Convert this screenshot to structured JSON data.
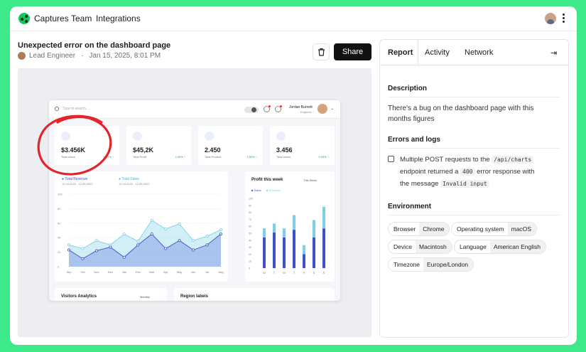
{
  "header": {
    "nav": [
      "Captures",
      "Team",
      "Integrations"
    ]
  },
  "capture": {
    "title": "Unexpected error on the dashboard page",
    "author": "Lead Engineer",
    "date": "Jan 15, 2025, 8:01 PM",
    "share_label": "Share"
  },
  "preview": {
    "search_placeholder": "Type to search...",
    "user_name": "Jordan Burnett",
    "user_role": "Engineer",
    "cards": [
      {
        "value": "$3.456K",
        "label": "Total views",
        "change": "0.43% ↑"
      },
      {
        "value": "$45,2K",
        "label": "Total Profit",
        "change": "4.35% ↑"
      },
      {
        "value": "2.450",
        "label": "Total Product",
        "change": "2.59% ↑"
      },
      {
        "value": "3.456",
        "label": "Total Users",
        "change": "0.95% ↑"
      }
    ],
    "revenue_chart": {
      "legend": [
        {
          "name": "Total Revenue",
          "range": "12.04.2022 - 12.05.2022",
          "color": "#3f51c8"
        },
        {
          "name": "Total Sales",
          "range": "12.04.2022 - 12.05.2022",
          "color": "#7fd0e6"
        }
      ]
    },
    "profit_chart": {
      "title": "Profit this week",
      "select": "This Week",
      "legend": [
        "Sales",
        "Revenue"
      ]
    },
    "visitors_title": "Visitors Analytics",
    "visitors_select": "Monthly",
    "region_title": "Region labels"
  },
  "chart_data": [
    {
      "type": "area",
      "categories": [
        "Sep",
        "Oct",
        "Nov",
        "Dec",
        "Jan",
        "Feb",
        "Mar",
        "Apr",
        "May",
        "Jun",
        "Jul",
        "Aug"
      ],
      "series": [
        {
          "name": "Total Revenue",
          "values": [
            23,
            11,
            22,
            27,
            13,
            30,
            45,
            25,
            36,
            23,
            30,
            45
          ]
        },
        {
          "name": "Total Sales",
          "values": [
            30,
            25,
            36,
            30,
            45,
            35,
            64,
            52,
            59,
            36,
            42,
            51
          ]
        }
      ],
      "yticks": [
        "100",
        "80",
        "60",
        "40",
        "20",
        "0"
      ],
      "ylim": [
        0,
        100
      ]
    },
    {
      "type": "bar",
      "title": "Profit this week",
      "categories": [
        "M",
        "T",
        "W",
        "T",
        "F",
        "S",
        "S"
      ],
      "series": [
        {
          "name": "Sales",
          "values": [
            44,
            51,
            44,
            55,
            20,
            44,
            57
          ]
        },
        {
          "name": "Revenue",
          "values": [
            13,
            13,
            13,
            21,
            13,
            25,
            31
          ]
        }
      ],
      "yticks": [
        "100",
        "90",
        "80",
        "70",
        "60",
        "50",
        "40",
        "30",
        "20",
        "10",
        "0"
      ],
      "ylim": [
        0,
        100
      ]
    }
  ],
  "sidebar": {
    "tabs": [
      "Report",
      "Activity",
      "Network"
    ],
    "description_title": "Description",
    "description": "There's a bug on the dashboard page with this months figures",
    "errors_title": "Errors and logs",
    "error": {
      "part1": "Multiple POST requests to the",
      "code1": "/api/charts",
      "part2": "endpoint returned a",
      "code2": "400",
      "part3": "error response with",
      "part4": "the message",
      "code3": "Invalid input"
    },
    "environment_title": "Environment",
    "env": [
      {
        "key": "Browser",
        "value": "Chrome"
      },
      {
        "key": "Operating system",
        "value": "macOS"
      },
      {
        "key": "Device",
        "value": "Macintosh"
      },
      {
        "key": "Language",
        "value": "American English"
      },
      {
        "key": "Timezone",
        "value": "Europe/London"
      }
    ]
  }
}
